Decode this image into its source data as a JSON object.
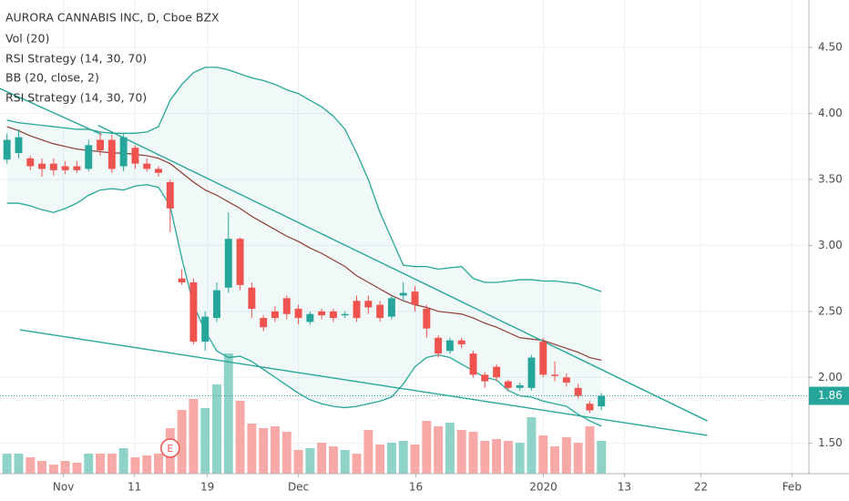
{
  "chart_data": {
    "type": "candlestick",
    "title": "AURORA CANNABIS INC, D, Cboe BZX",
    "indicators": [
      "Vol (20)",
      "RSI Strategy (14, 30, 70)",
      "BB (20, close, 2)",
      "RSI Strategy (14, 30, 70)"
    ],
    "open": [
      3.65,
      3.7,
      3.66,
      3.62,
      3.62,
      3.6,
      3.6,
      3.58,
      3.8,
      3.8,
      3.6,
      3.74,
      3.62,
      3.58,
      3.48,
      2.75,
      2.72,
      2.27,
      2.45,
      2.68,
      3.05,
      2.68,
      2.45,
      2.5,
      2.6,
      2.52,
      2.42,
      2.5,
      2.5,
      2.47,
      2.58,
      2.58,
      2.55,
      2.46,
      2.62,
      2.65,
      2.52,
      2.3,
      2.2,
      2.28,
      2.18,
      2.02,
      2.08,
      1.97,
      1.92,
      1.92,
      2.27,
      2.02,
      2.0,
      1.92,
      1.8,
      1.78
    ],
    "high": [
      3.85,
      3.88,
      3.68,
      3.66,
      3.66,
      3.64,
      3.64,
      3.8,
      3.86,
      3.84,
      3.85,
      3.76,
      3.66,
      3.6,
      3.5,
      2.82,
      2.75,
      2.5,
      2.72,
      3.25,
      3.06,
      2.72,
      2.47,
      2.54,
      2.62,
      2.55,
      2.5,
      2.52,
      2.52,
      2.5,
      2.62,
      2.62,
      2.58,
      2.62,
      2.72,
      2.69,
      2.55,
      2.32,
      2.3,
      2.3,
      2.2,
      2.04,
      2.1,
      1.98,
      1.96,
      2.17,
      2.3,
      2.12,
      2.03,
      1.95,
      1.82,
      1.88
    ],
    "low": [
      3.62,
      3.66,
      3.57,
      3.52,
      3.53,
      3.54,
      3.55,
      3.56,
      3.68,
      3.55,
      3.56,
      3.58,
      3.56,
      3.52,
      3.1,
      2.7,
      2.25,
      2.2,
      2.42,
      2.64,
      2.66,
      2.45,
      2.35,
      2.42,
      2.44,
      2.4,
      2.4,
      2.44,
      2.42,
      2.45,
      2.42,
      2.48,
      2.42,
      2.44,
      2.58,
      2.5,
      2.3,
      2.15,
      2.18,
      2.22,
      2.0,
      1.92,
      1.97,
      1.9,
      1.9,
      1.9,
      2.0,
      1.97,
      1.93,
      1.84,
      1.73,
      1.75
    ],
    "close": [
      3.8,
      3.82,
      3.6,
      3.58,
      3.57,
      3.57,
      3.57,
      3.76,
      3.72,
      3.58,
      3.82,
      3.62,
      3.58,
      3.55,
      3.28,
      2.72,
      2.27,
      2.46,
      2.66,
      3.05,
      2.7,
      2.52,
      2.38,
      2.45,
      2.48,
      2.45,
      2.48,
      2.47,
      2.45,
      2.48,
      2.45,
      2.53,
      2.45,
      2.6,
      2.64,
      2.55,
      2.37,
      2.18,
      2.28,
      2.25,
      2.02,
      1.97,
      2.0,
      1.92,
      1.94,
      2.15,
      2.02,
      2.01,
      1.96,
      1.86,
      1.75,
      1.86
    ],
    "volume": [
      11,
      11,
      9,
      7,
      5,
      7,
      6,
      11,
      11,
      11,
      14,
      9,
      10,
      11,
      25,
      35,
      41,
      36,
      49,
      66,
      40,
      27.5,
      25,
      26,
      23,
      13,
      14,
      17,
      15,
      13,
      11,
      24,
      16,
      17,
      18,
      16,
      29,
      26,
      28,
      24,
      23,
      18,
      19,
      18,
      17,
      31,
      21,
      15,
      20,
      17,
      26,
      18
    ],
    "vlim": [
      0,
      80
    ],
    "bb_upper": [
      3.95,
      3.93,
      3.92,
      3.91,
      3.9,
      3.89,
      3.88,
      3.88,
      3.86,
      3.85,
      3.85,
      3.85,
      3.86,
      3.9,
      4.1,
      4.22,
      4.31,
      4.35,
      4.35,
      4.33,
      4.3,
      4.27,
      4.25,
      4.22,
      4.18,
      4.15,
      4.1,
      4.05,
      3.98,
      3.88,
      3.7,
      3.5,
      3.25,
      3.05,
      2.85,
      2.84,
      2.84,
      2.82,
      2.83,
      2.84,
      2.75,
      2.72,
      2.72,
      2.73,
      2.74,
      2.74,
      2.73,
      2.73,
      2.72,
      2.71,
      2.68,
      2.65
    ],
    "bb_basis": [
      3.9,
      3.87,
      3.83,
      3.8,
      3.77,
      3.75,
      3.73,
      3.72,
      3.71,
      3.7,
      3.7,
      3.69,
      3.68,
      3.66,
      3.62,
      3.55,
      3.48,
      3.42,
      3.38,
      3.33,
      3.28,
      3.22,
      3.17,
      3.12,
      3.07,
      3.03,
      2.98,
      2.94,
      2.89,
      2.84,
      2.77,
      2.72,
      2.67,
      2.62,
      2.58,
      2.55,
      2.53,
      2.5,
      2.49,
      2.48,
      2.45,
      2.41,
      2.38,
      2.34,
      2.3,
      2.29,
      2.28,
      2.25,
      2.22,
      2.19,
      2.15,
      2.13
    ],
    "bb_lower": [
      3.32,
      3.32,
      3.3,
      3.27,
      3.25,
      3.28,
      3.32,
      3.38,
      3.42,
      3.43,
      3.42,
      3.45,
      3.46,
      3.44,
      3.3,
      2.9,
      2.55,
      2.35,
      2.2,
      2.15,
      2.16,
      2.12,
      2.06,
      2.0,
      1.94,
      1.88,
      1.83,
      1.8,
      1.78,
      1.77,
      1.78,
      1.8,
      1.82,
      1.85,
      1.95,
      2.08,
      2.15,
      2.17,
      2.15,
      2.1,
      2.05,
      2.0,
      1.98,
      1.9,
      1.86,
      1.85,
      1.82,
      1.8,
      1.78,
      1.72,
      1.67,
      1.63
    ],
    "trendlines": [
      {
        "x": [
          7.81,
          60.08
        ],
        "y": [
          3.91,
          1.67
        ]
      },
      {
        "x": [
          1.09,
          60.08
        ],
        "y": [
          2.36,
          1.56
        ]
      },
      {
        "x": [
          -0.63,
          8.13
        ],
        "y": [
          4.19,
          3.84
        ]
      }
    ],
    "event": {
      "label": "E",
      "index": 14
    },
    "last_price": 1.86,
    "xlim": [
      -0.6,
      68.8
    ],
    "ylim": [
      1.27,
      4.86
    ],
    "xticks": [
      {
        "value": 4.84,
        "label": "Nov"
      },
      {
        "value": 10.94,
        "label": "11"
      },
      {
        "value": 17.19,
        "label": "19"
      },
      {
        "value": 25.0,
        "label": "Dec"
      },
      {
        "value": 35.08,
        "label": "16"
      },
      {
        "value": 46.02,
        "label": "2020"
      },
      {
        "value": 52.97,
        "label": "13"
      },
      {
        "value": 59.53,
        "label": "22"
      },
      {
        "value": 67.34,
        "label": "Feb"
      }
    ],
    "yticks": [
      {
        "value": 1.5,
        "label": "1.50"
      },
      {
        "value": 2,
        "label": "2.00"
      },
      {
        "value": 2.5,
        "label": "2.50"
      },
      {
        "value": 3,
        "label": "3.00"
      },
      {
        "value": 3.5,
        "label": "3.50"
      },
      {
        "value": 4,
        "label": "4.00"
      },
      {
        "value": 4.5,
        "label": "4.50"
      }
    ],
    "grid": true,
    "colors": {
      "up": "#26a69a",
      "down": "#ef5350",
      "vol_up": "#8fd3c8",
      "vol_down": "#f7a9a7",
      "band": "#26a69a",
      "basis": "#8d3b33",
      "trend": "#26a69a"
    }
  }
}
